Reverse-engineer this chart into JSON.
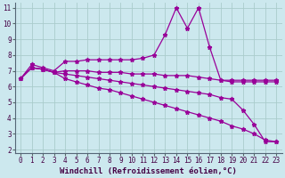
{
  "x": [
    0,
    1,
    2,
    3,
    4,
    5,
    6,
    7,
    8,
    9,
    10,
    11,
    12,
    13,
    14,
    15,
    16,
    17,
    18,
    19,
    20,
    21,
    22,
    23
  ],
  "line1": [
    6.5,
    7.4,
    7.2,
    7.0,
    7.6,
    7.6,
    7.7,
    7.7,
    7.7,
    7.7,
    7.7,
    7.8,
    8.0,
    9.3,
    11.0,
    9.7,
    11.0,
    8.5,
    6.4,
    6.4,
    6.4,
    6.4,
    6.4,
    6.4
  ],
  "line2": [
    6.5,
    7.2,
    7.1,
    6.9,
    7.0,
    7.0,
    7.0,
    6.9,
    6.9,
    6.9,
    6.8,
    6.8,
    6.8,
    6.7,
    6.7,
    6.7,
    6.6,
    6.5,
    6.4,
    6.3,
    6.3,
    6.3,
    6.3,
    6.3
  ],
  "line3": [
    6.5,
    7.2,
    7.1,
    6.9,
    6.8,
    6.7,
    6.6,
    6.5,
    6.4,
    6.3,
    6.2,
    6.1,
    6.0,
    5.9,
    5.8,
    5.7,
    5.6,
    5.5,
    5.3,
    5.2,
    4.5,
    3.6,
    2.5,
    2.5
  ],
  "line4": [
    6.5,
    7.2,
    7.1,
    6.9,
    6.5,
    6.3,
    6.1,
    5.9,
    5.8,
    5.6,
    5.4,
    5.2,
    5.0,
    4.8,
    4.6,
    4.4,
    4.2,
    4.0,
    3.8,
    3.5,
    3.3,
    3.0,
    2.6,
    2.5
  ],
  "line_color": "#990099",
  "bg_color": "#cce8ee",
  "grid_color": "#aacccc",
  "xlabel": "Windchill (Refroidissement éolien,°C)",
  "xlim": [
    0,
    23
  ],
  "ylim": [
    2,
    11
  ],
  "yticks": [
    2,
    3,
    4,
    5,
    6,
    7,
    8,
    9,
    10,
    11
  ],
  "xticks": [
    0,
    1,
    2,
    3,
    4,
    5,
    6,
    7,
    8,
    9,
    10,
    11,
    12,
    13,
    14,
    15,
    16,
    17,
    18,
    19,
    20,
    21,
    22,
    23
  ],
  "tick_fontsize": 5.5,
  "label_fontsize": 6.5
}
